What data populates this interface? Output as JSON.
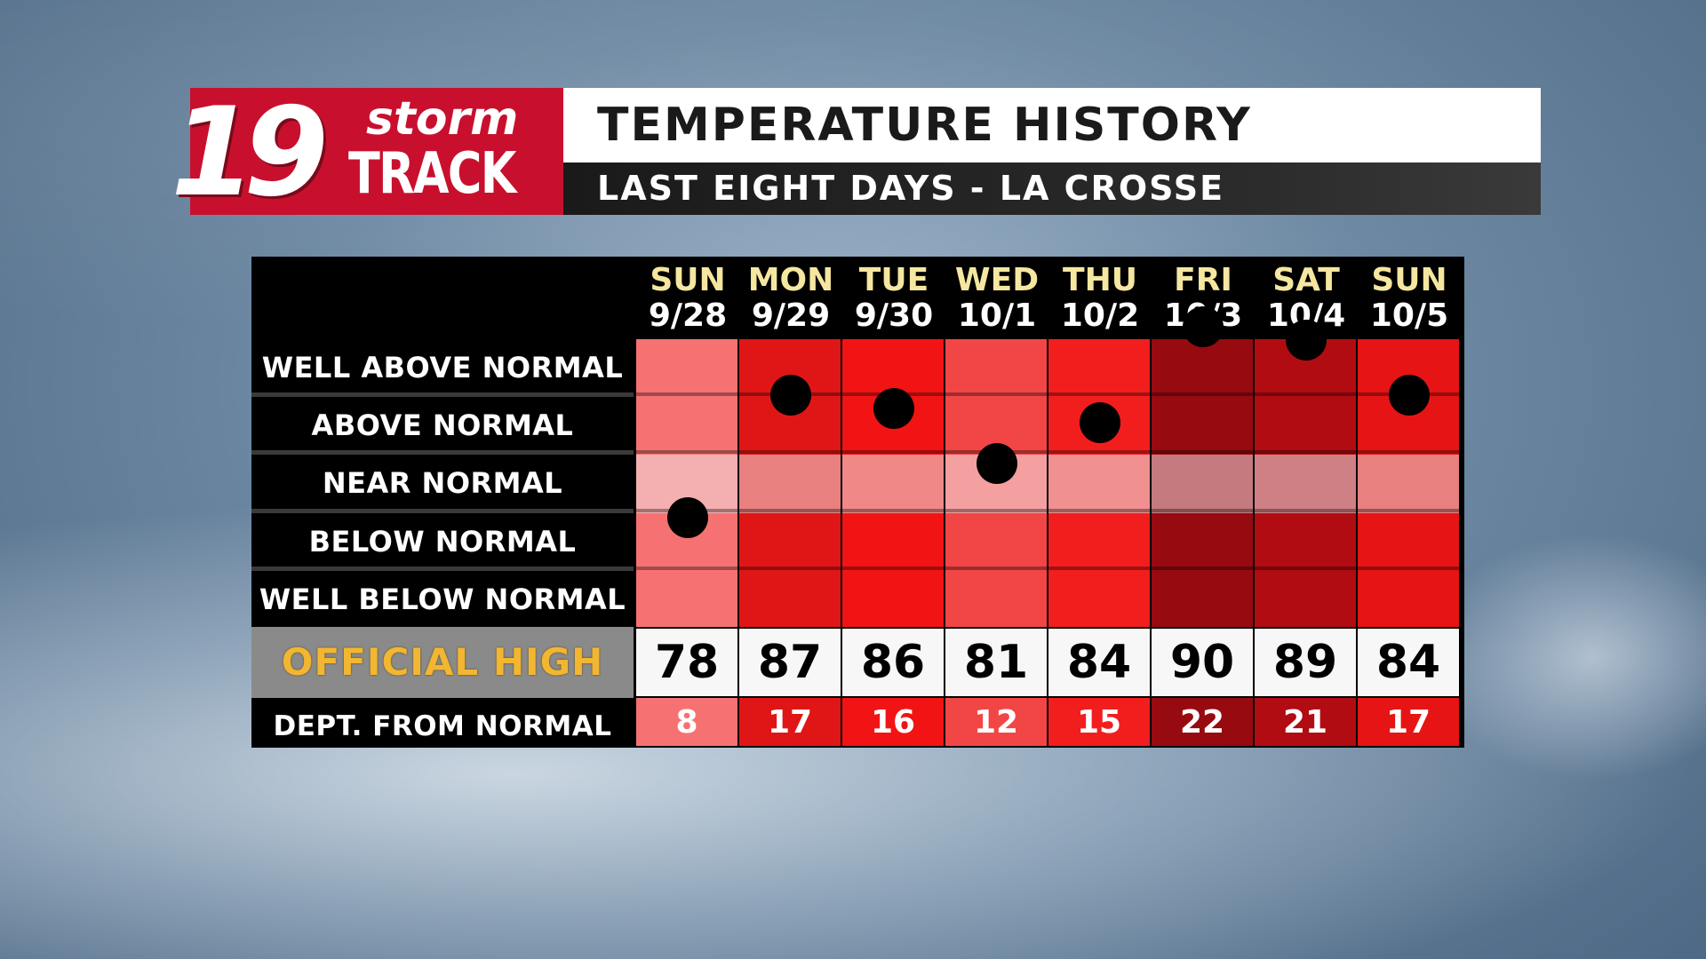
{
  "header": {
    "logo_number": "19",
    "logo_storm": "storm",
    "logo_track": "TRACK",
    "title": "TEMPERATURE HISTORY",
    "subtitle": "LAST EIGHT DAYS - LA CROSSE"
  },
  "chart_data": {
    "type": "table",
    "title": "TEMPERATURE HISTORY",
    "subtitle": "LAST EIGHT DAYS - LA CROSSE",
    "categories": [
      {
        "day": "SUN",
        "date": "9/28"
      },
      {
        "day": "MON",
        "date": "9/29"
      },
      {
        "day": "TUE",
        "date": "9/30"
      },
      {
        "day": "WED",
        "date": "10/1"
      },
      {
        "day": "THU",
        "date": "10/2"
      },
      {
        "day": "FRI",
        "date": "10/3"
      },
      {
        "day": "SAT",
        "date": "10/4"
      },
      {
        "day": "SUN",
        "date": "10/5"
      }
    ],
    "rows": [
      "WELL ABOVE NORMAL",
      "ABOVE NORMAL",
      "NEAR NORMAL",
      "BELOW NORMAL",
      "WELL BELOW NORMAL"
    ],
    "official_high_label": "OFFICIAL HIGH",
    "dept_label": "DEPT. FROM NORMAL",
    "official_high": [
      "78",
      "87",
      "86",
      "81",
      "84",
      "90",
      "89",
      "84"
    ],
    "dept_from_normal": [
      "8",
      "17",
      "16",
      "12",
      "15",
      "22",
      "21",
      "17"
    ],
    "dept_scale": [
      0,
      25
    ],
    "column_colors": [
      "#f67272",
      "#e01616",
      "#f21414",
      "#f24646",
      "#f21e1e",
      "#960a10",
      "#b10c12",
      "#e61414"
    ],
    "near_normal_colors": [
      "#f4b0b0",
      "#e98080",
      "#f08888",
      "#f4a0a0",
      "#f09090",
      "#c47a7e",
      "#cf8084",
      "#e88080"
    ]
  }
}
